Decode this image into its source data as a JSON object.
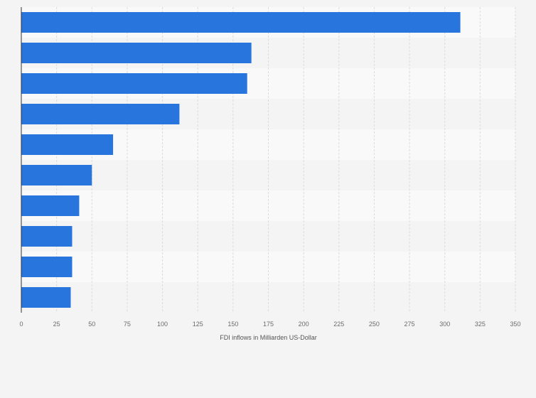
{
  "chart_data": {
    "type": "bar",
    "orientation": "horizontal",
    "categories": [
      "",
      "",
      "",
      "",
      "",
      "",
      "",
      "",
      "",
      ""
    ],
    "values": [
      311,
      163,
      160,
      112,
      65,
      50,
      41,
      36,
      36,
      35
    ],
    "xlabel": "FDI inflows in Milliarden US-Dollar",
    "xlim": [
      0,
      350
    ],
    "xticks": [
      0,
      25,
      50,
      75,
      100,
      125,
      150,
      175,
      200,
      225,
      250,
      275,
      300,
      325,
      350
    ],
    "grid": true,
    "colors": {
      "bar": "#2876dd",
      "band_light": "#f9f9f9",
      "band_dark": "#f4f4f4",
      "grid": "#dcdcdc",
      "axis": "#333333",
      "background": "#f4f4f4"
    }
  }
}
